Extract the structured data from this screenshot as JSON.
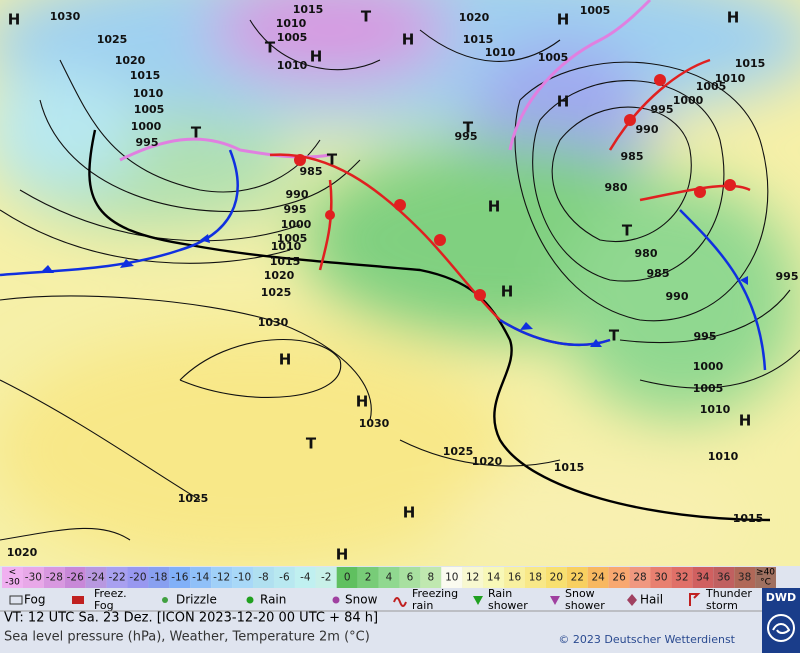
{
  "map": {
    "isobar_labels": [
      1030,
      1015,
      1010,
      1005,
      1010,
      1020,
      1015,
      1010,
      1005,
      1005,
      1025,
      1020,
      1015,
      1010,
      1005,
      1000,
      995,
      985,
      990,
      995,
      1000,
      1005,
      1010,
      1015,
      1020,
      1025,
      1030,
      995,
      1030,
      1025,
      1020,
      1015,
      1025,
      1020,
      1015,
      1010,
      1010,
      1005,
      1000,
      995,
      990,
      985,
      980,
      980,
      985,
      990,
      995,
      1000,
      1005,
      1010,
      1015,
      995
    ],
    "pressure_centers": [
      "H",
      "T",
      "T",
      "H",
      "H",
      "H",
      "H",
      "T",
      "T",
      "T",
      "H",
      "H",
      "T",
      "H",
      "T",
      "H",
      "H",
      "T",
      "H",
      "H",
      "H"
    ]
  },
  "temperature_scale": {
    "low_label": {
      "top": "<",
      "bottom": "-30"
    },
    "values": [
      -30,
      -28,
      -26,
      -24,
      -22,
      -20,
      -18,
      -16,
      -14,
      -12,
      -10,
      -8,
      -6,
      -4,
      -2,
      0,
      2,
      4,
      6,
      8,
      10,
      12,
      14,
      16,
      18,
      20,
      22,
      24,
      26,
      28,
      30,
      32,
      34,
      36,
      38
    ],
    "colors": [
      "#e8a8e8",
      "#d898e0",
      "#c888d8",
      "#b898e0",
      "#a8a0f0",
      "#9898f0",
      "#88a0f0",
      "#80b0f8",
      "#90c0f8",
      "#a0d0f8",
      "#a8d8f8",
      "#b0e0f0",
      "#b8e8f0",
      "#c0f0f0",
      "#c8f0e8",
      "#60c060",
      "#78cc78",
      "#90d890",
      "#a8e0a0",
      "#c0e8b0",
      "#fbfbf0",
      "#f8f8d0",
      "#f8f8b8",
      "#f8f0a0",
      "#f8e888",
      "#f8e070",
      "#f8d060",
      "#f8b860",
      "#f8a870",
      "#f09880",
      "#e88070",
      "#e07068",
      "#d06060",
      "#c06060",
      "#b06858"
    ],
    "low_color": "#f0b0f0",
    "high_color": "#a07060",
    "high_label": {
      "top": "≥40",
      "bottom": "°C"
    }
  },
  "weather_legend": [
    "Fog",
    "Freez. Fog",
    "Drizzle",
    "Rain",
    "Snow",
    "Freezing rain",
    "Rain shower",
    "Snow shower",
    "Hail",
    "Thunder storm"
  ],
  "footer": {
    "valid_time": "VT: 12 UTC Sa.  23 Dez. [ICON 2023-12-20  00 UTC + 84 h]",
    "description": "Sea level pressure (hPa), Weather, Temperature 2m (°C)",
    "copyright": "© 2023 Deutscher Wetterdienst",
    "logo": "DWD"
  }
}
